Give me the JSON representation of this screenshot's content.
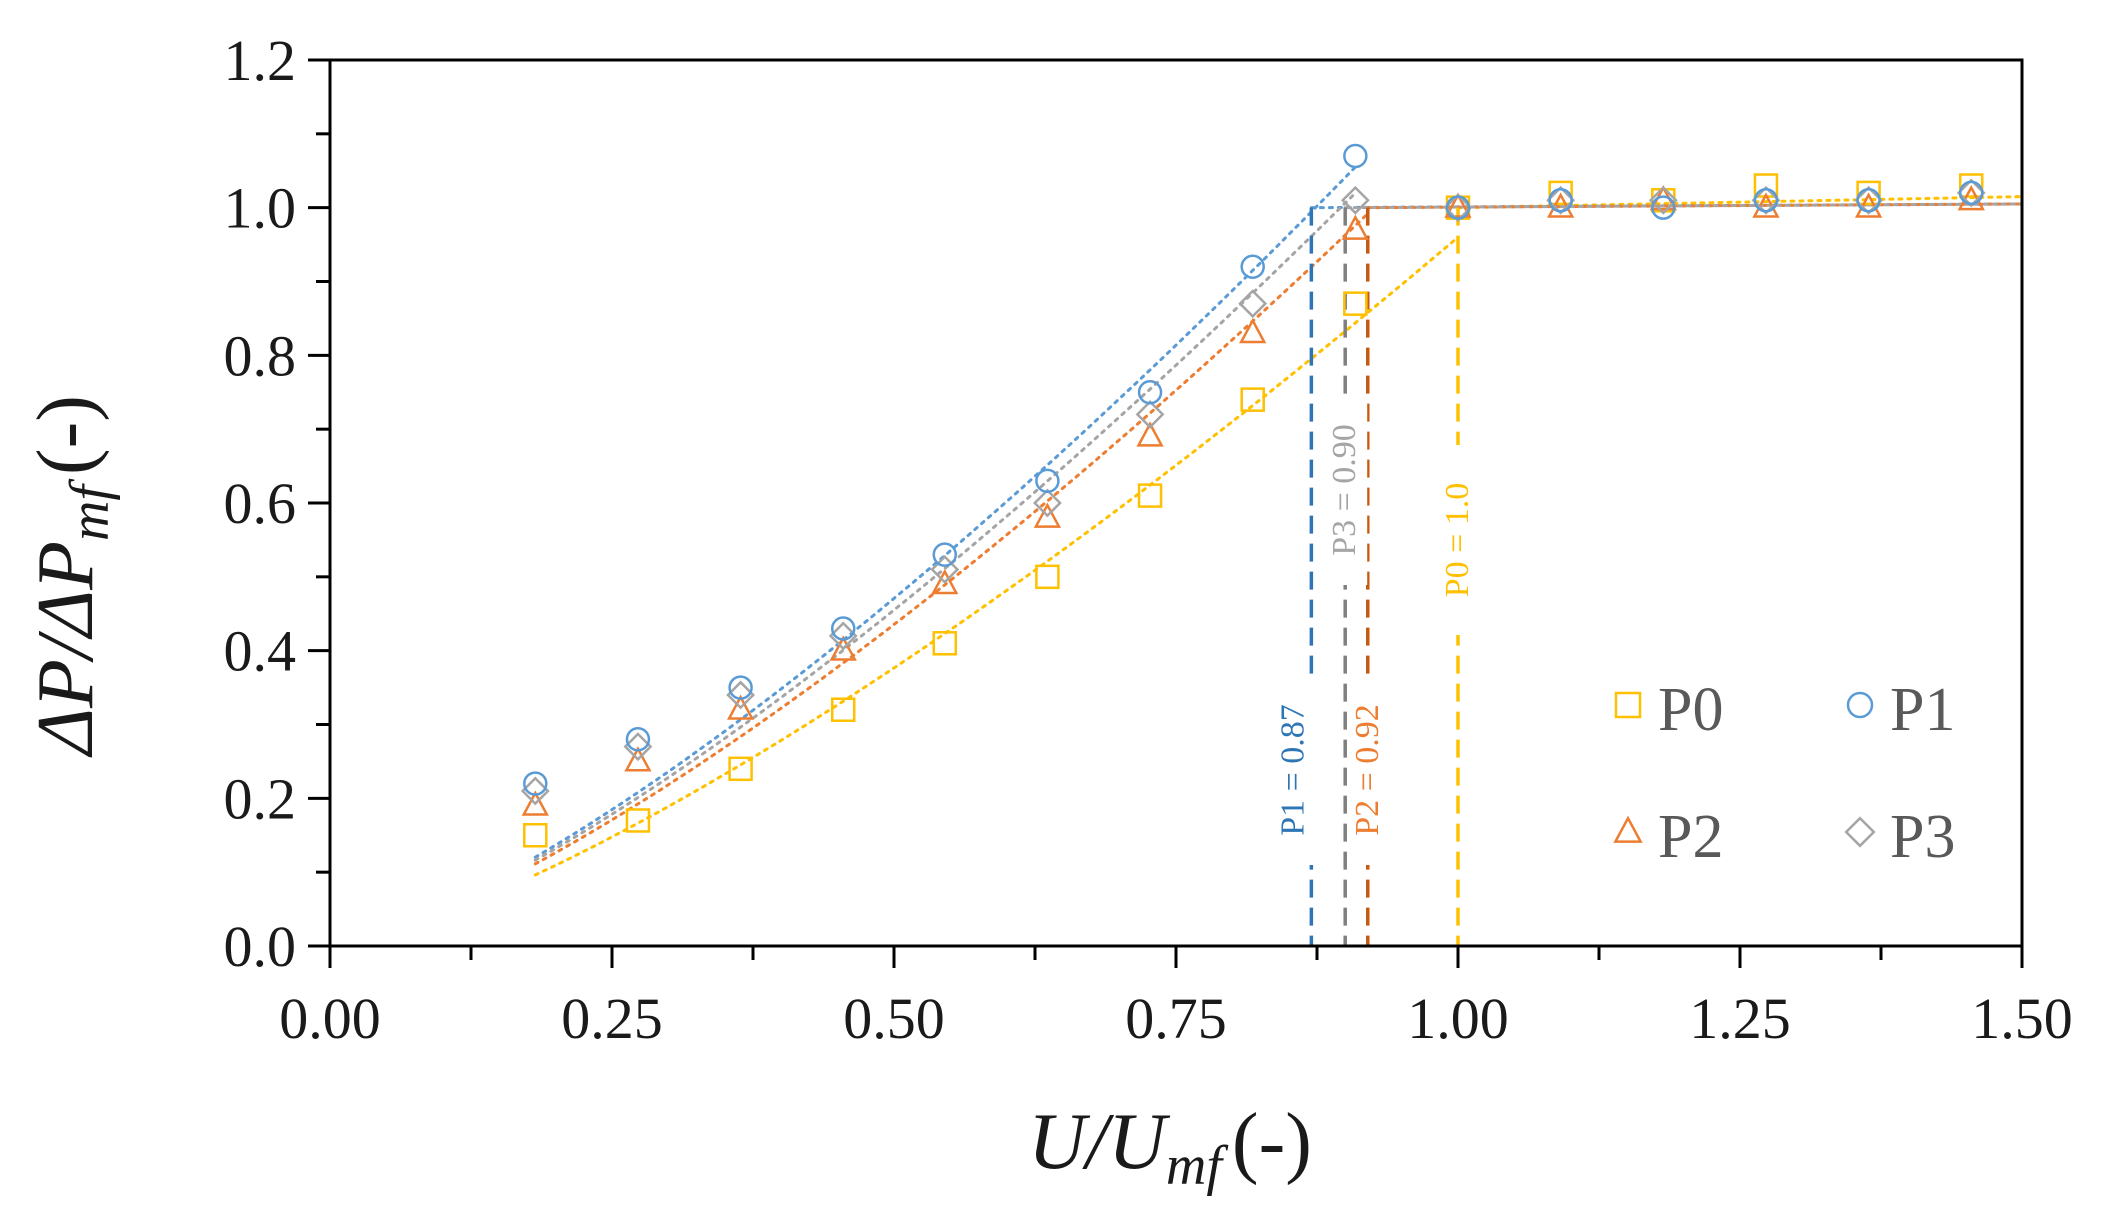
{
  "chart_data": {
    "type": "scatter",
    "xlabel": {
      "main": "U/U",
      "sub": "mf",
      "unit": "(-)"
    },
    "ylabel": {
      "main": "ΔP/ΔP",
      "sub": "mf",
      "unit": "(-)"
    },
    "xlim": [
      0,
      1.5
    ],
    "ylim": [
      0,
      1.2
    ],
    "xticks": [
      "0.00",
      "0.25",
      "0.50",
      "0.75",
      "1.00",
      "1.25",
      "1.50"
    ],
    "yticks": [
      "0.0",
      "0.2",
      "0.4",
      "0.6",
      "0.8",
      "1.0",
      "1.2"
    ],
    "grid": false,
    "legend": "bottom-right",
    "series": [
      {
        "name": "P0",
        "marker": "square",
        "color": "#FFC000",
        "x": [
          0.182,
          0.273,
          0.364,
          0.455,
          0.545,
          0.636,
          0.727,
          0.818,
          0.909,
          1.0,
          1.091,
          1.182,
          1.273,
          1.364,
          1.455
        ],
        "y": [
          0.15,
          0.17,
          0.24,
          0.32,
          0.41,
          0.5,
          0.61,
          0.74,
          0.87,
          1.0,
          1.02,
          1.01,
          1.03,
          1.02,
          1.03
        ],
        "fit_a": 0.96,
        "fit_exp": 1.35,
        "fit_end": 1.0,
        "transition": 1.0,
        "transition_label": "P0 = 1.0"
      },
      {
        "name": "P1",
        "marker": "circle",
        "color": "#5B9BD5",
        "x": [
          0.182,
          0.273,
          0.364,
          0.455,
          0.545,
          0.636,
          0.727,
          0.818,
          0.909,
          1.0,
          1.091,
          1.182,
          1.273,
          1.364,
          1.455
        ],
        "y": [
          0.22,
          0.28,
          0.35,
          0.43,
          0.53,
          0.63,
          0.75,
          0.92,
          1.07,
          1.0,
          1.01,
          1.0,
          1.01,
          1.01,
          1.02
        ],
        "fit_a": 1.2,
        "fit_exp": 1.35,
        "fit_end": 0.91,
        "transition": 0.87,
        "transition_label": "P1 = 0.87"
      },
      {
        "name": "P2",
        "marker": "triangle",
        "color": "#ED7D31",
        "x": [
          0.182,
          0.273,
          0.364,
          0.455,
          0.545,
          0.636,
          0.727,
          0.818,
          0.909,
          1.0,
          1.091,
          1.182,
          1.273,
          1.364,
          1.455
        ],
        "y": [
          0.19,
          0.25,
          0.32,
          0.4,
          0.49,
          0.58,
          0.69,
          0.83,
          0.97,
          1.0,
          1.0,
          1.01,
          1.0,
          1.0,
          1.01
        ],
        "fit_a": 1.11,
        "fit_exp": 1.35,
        "fit_end": 0.92,
        "transition": 0.92,
        "transition_label": "P2 = 0.92"
      },
      {
        "name": "P3",
        "marker": "diamond",
        "color": "#A5A5A5",
        "x": [
          0.182,
          0.273,
          0.364,
          0.455,
          0.545,
          0.636,
          0.727,
          0.818,
          0.909,
          1.0,
          1.091,
          1.182,
          1.273,
          1.364,
          1.455
        ],
        "y": [
          0.21,
          0.27,
          0.34,
          0.42,
          0.51,
          0.6,
          0.72,
          0.87,
          1.01,
          1.0,
          1.01,
          1.01,
          1.01,
          1.01,
          1.02
        ],
        "fit_a": 1.16,
        "fit_exp": 1.35,
        "fit_end": 0.91,
        "transition": 0.9,
        "transition_label": "P3 = 0.90"
      }
    ]
  }
}
